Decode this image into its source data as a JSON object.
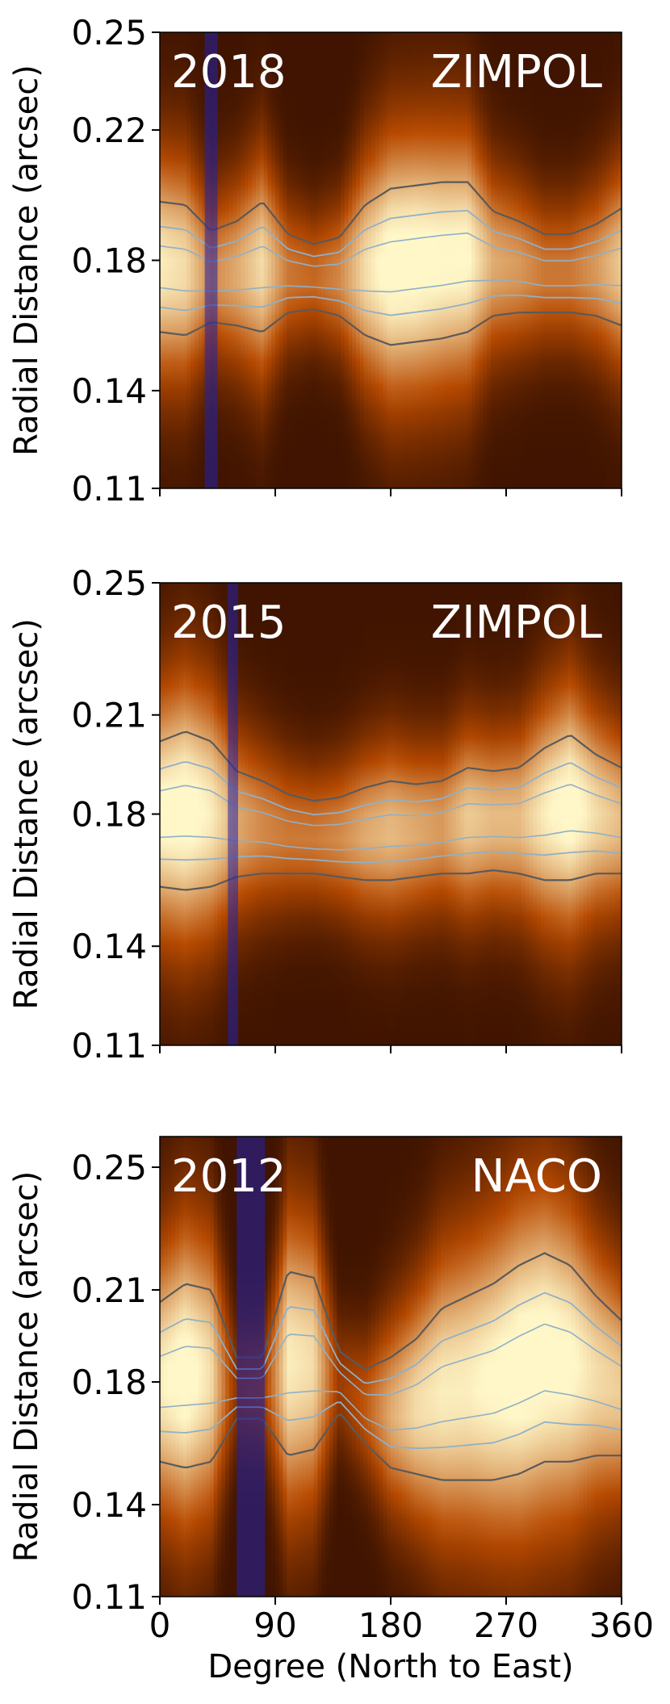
{
  "colors": {
    "map_dark": "#1a0300",
    "map_mid": "#b84a00",
    "map_bright": "#fff7c8",
    "contour_outer": "#5a5a5a",
    "contour_inner": "#8fb0c8",
    "band": "#2222aa"
  },
  "chart_data": [
    {
      "type": "heatmap",
      "year_label": "2018",
      "instrument_label": "ZIMPOL",
      "xlim": [
        0,
        360
      ],
      "ylim": [
        0.11,
        0.25
      ],
      "xticks": [
        0,
        90,
        180,
        270,
        360
      ],
      "yticks": [
        0.11,
        0.14,
        0.18,
        0.22,
        0.25
      ],
      "ytick_labels": [
        "0.11",
        "0.14",
        "0.18",
        "0.22",
        "0.25"
      ],
      "ylabel": "Radial Distance (arcsec)",
      "band_x": [
        35,
        45
      ],
      "ridge": {
        "x": [
          0,
          20,
          40,
          60,
          80,
          100,
          120,
          140,
          160,
          180,
          200,
          220,
          240,
          260,
          280,
          300,
          320,
          340,
          360
        ],
        "center": [
          0.178,
          0.177,
          0.175,
          0.176,
          0.178,
          0.176,
          0.175,
          0.175,
          0.177,
          0.178,
          0.179,
          0.18,
          0.181,
          0.179,
          0.178,
          0.176,
          0.176,
          0.177,
          0.178
        ],
        "halfwidth": [
          0.02,
          0.02,
          0.014,
          0.016,
          0.02,
          0.012,
          0.01,
          0.012,
          0.02,
          0.024,
          0.024,
          0.024,
          0.023,
          0.016,
          0.014,
          0.012,
          0.012,
          0.014,
          0.018
        ],
        "peak": [
          0.9,
          0.85,
          0.6,
          0.7,
          0.85,
          0.55,
          0.5,
          0.6,
          0.85,
          1.0,
          1.0,
          0.95,
          0.95,
          0.7,
          0.65,
          0.55,
          0.55,
          0.65,
          0.8
        ]
      }
    },
    {
      "type": "heatmap",
      "year_label": "2015",
      "instrument_label": "ZIMPOL",
      "xlim": [
        0,
        360
      ],
      "ylim": [
        0.11,
        0.25
      ],
      "xticks": [
        0,
        90,
        180,
        270,
        360
      ],
      "yticks": [
        0.11,
        0.14,
        0.18,
        0.21,
        0.25
      ],
      "ytick_labels": [
        "0.11",
        "0.14",
        "0.18",
        "0.21",
        "0.25"
      ],
      "ylabel": "Radial Distance (arcsec)",
      "band_x": [
        53,
        61
      ],
      "ridge": {
        "x": [
          0,
          20,
          40,
          60,
          80,
          100,
          120,
          140,
          160,
          180,
          200,
          220,
          240,
          260,
          280,
          300,
          320,
          340,
          360
        ],
        "center": [
          0.18,
          0.181,
          0.18,
          0.177,
          0.176,
          0.174,
          0.173,
          0.173,
          0.174,
          0.175,
          0.175,
          0.176,
          0.178,
          0.178,
          0.178,
          0.18,
          0.182,
          0.18,
          0.178
        ],
        "halfwidth": [
          0.022,
          0.024,
          0.022,
          0.016,
          0.014,
          0.012,
          0.011,
          0.012,
          0.014,
          0.015,
          0.014,
          0.014,
          0.016,
          0.015,
          0.016,
          0.02,
          0.022,
          0.018,
          0.016
        ],
        "peak": [
          0.95,
          1.0,
          0.9,
          0.7,
          0.6,
          0.55,
          0.55,
          0.6,
          0.7,
          0.75,
          0.7,
          0.65,
          0.8,
          0.75,
          0.75,
          0.9,
          1.0,
          0.85,
          0.75
        ]
      }
    },
    {
      "type": "heatmap",
      "year_label": "2012",
      "instrument_label": "NACO",
      "xlim": [
        0,
        360
      ],
      "ylim": [
        0.11,
        0.26
      ],
      "xticks": [
        0,
        90,
        180,
        270,
        360
      ],
      "xtick_labels": [
        "0",
        "90",
        "180",
        "270",
        "360"
      ],
      "yticks": [
        0.11,
        0.14,
        0.18,
        0.21,
        0.25
      ],
      "ytick_labels": [
        "0.11",
        "0.14",
        "0.18",
        "0.21",
        "0.25"
      ],
      "ylabel": "Radial Distance (arcsec)",
      "xlabel": "Degree (North to East)",
      "band_x": [
        60,
        82
      ],
      "ridge": {
        "x": [
          0,
          20,
          40,
          60,
          80,
          100,
          120,
          140,
          160,
          180,
          200,
          220,
          240,
          260,
          280,
          300,
          320,
          340,
          360
        ],
        "center": [
          0.18,
          0.182,
          0.182,
          0.178,
          0.178,
          0.186,
          0.186,
          0.18,
          0.172,
          0.17,
          0.172,
          0.176,
          0.178,
          0.18,
          0.184,
          0.188,
          0.186,
          0.182,
          0.178
        ],
        "halfwidth": [
          0.026,
          0.03,
          0.028,
          0.01,
          0.01,
          0.03,
          0.028,
          0.01,
          0.012,
          0.018,
          0.022,
          0.028,
          0.03,
          0.032,
          0.034,
          0.034,
          0.032,
          0.026,
          0.022
        ],
        "peak": [
          0.9,
          1.0,
          0.85,
          0.25,
          0.3,
          0.9,
          0.85,
          0.3,
          0.45,
          0.7,
          0.85,
          0.9,
          0.9,
          0.95,
          1.0,
          1.0,
          0.95,
          0.85,
          0.8
        ]
      }
    }
  ]
}
